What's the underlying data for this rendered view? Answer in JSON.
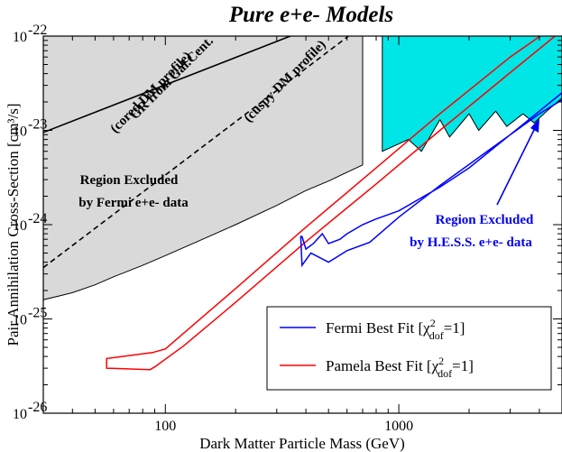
{
  "chart_data": {
    "type": "line",
    "title": "Pure e+e- Models",
    "xlabel": "Dark Matter Particle Mass (GeV)",
    "ylabel": "Pair Annihilation Cross-Section [cm³/s]",
    "xscale": "log",
    "yscale": "log",
    "xlim": [
      30,
      5000
    ],
    "ylim": [
      1e-26,
      1e-22
    ],
    "x_ticks": [
      {
        "value": 100,
        "label": "100"
      },
      {
        "value": 1000,
        "label": "1000"
      }
    ],
    "y_ticks": [
      {
        "value": 1e-26,
        "base": "10",
        "exp": "-26"
      },
      {
        "value": 1e-25,
        "base": "10",
        "exp": "-25"
      },
      {
        "value": 1e-24,
        "base": "10",
        "exp": "-24"
      },
      {
        "value": 1e-23,
        "base": "10",
        "exp": "-23"
      },
      {
        "value": 1e-22,
        "base": "10",
        "exp": "-22"
      }
    ],
    "grid": false,
    "legend_position": "bottom-right",
    "colors": {
      "fermi_region": "#d9d9d9",
      "hess_region": "#00e5e5",
      "fermi_fit": "#0000ff",
      "pamela_fit": "#ff0000",
      "gr_lines": "#000000",
      "hess_annotation": "#0000ee"
    },
    "regions": [
      {
        "name": "Fermi e+e- excluded region",
        "boundary_x": [
          30,
          35,
          40,
          50,
          60,
          80,
          100,
          150,
          200,
          300,
          400,
          500,
          600,
          700
        ],
        "boundary_y": [
          1.6e-25,
          1.75e-25,
          1.9e-25,
          2.3e-25,
          2.8e-25,
          3.7e-25,
          4.7e-25,
          7.3e-25,
          1e-24,
          1.6e-24,
          2.3e-24,
          2.9e-24,
          3.6e-24,
          4.3e-24
        ]
      },
      {
        "name": "H.E.S.S. e+e- excluded region",
        "boundary_x": [
          850,
          1100,
          1250,
          1500,
          1650,
          2000,
          2200,
          2600,
          2900,
          3400,
          3800,
          4300,
          5000
        ],
        "boundary_y": [
          6e-24,
          8e-24,
          6e-24,
          1.3e-23,
          8.5e-24,
          1.5e-23,
          1e-23,
          1.6e-23,
          1.1e-23,
          1.5e-23,
          1.2e-23,
          1.6e-23,
          2.2e-23
        ]
      }
    ],
    "series": [
      {
        "name": "Fermi Best Fit",
        "style": "closed contour",
        "x": [
          380,
          385,
          420,
          500,
          600,
          750,
          1000,
          1500,
          2500,
          4000,
          5000,
          5000,
          4000,
          3000,
          2000,
          1500,
          1000,
          800,
          700,
          600,
          560,
          500,
          470,
          430,
          400,
          385
        ],
        "y": [
          7.5e-25,
          3.7e-25,
          5e-25,
          4e-25,
          5.3e-25,
          6.5e-25,
          1.2e-24,
          2.6e-24,
          6.5e-24,
          1.5e-23,
          2.1e-23,
          2.5e-23,
          1.6e-23,
          9e-24,
          4e-24,
          2.5e-24,
          1.4e-24,
          1.15e-24,
          1e-24,
          8e-25,
          7e-25,
          6.3e-25,
          8e-25,
          6.3e-25,
          5.5e-25,
          7.5e-25
        ]
      },
      {
        "name": "Pamela Best Fit",
        "style": "closed contour",
        "x": [
          56,
          56,
          88,
          100,
          200,
          400,
          800,
          1500,
          3000,
          5000,
          5000,
          3000,
          1500,
          800,
          400,
          200,
          120,
          90,
          86,
          56
        ],
        "y": [
          3e-26,
          3.8e-26,
          4.4e-26,
          4.8e-26,
          2.1e-25,
          9.4e-25,
          4e-24,
          1.5e-23,
          6e-23,
          1.45e-22,
          1.15e-22,
          4.1e-23,
          1e-23,
          2.7e-24,
          6.6e-25,
          1.5e-25,
          5.2e-26,
          3.1e-26,
          2.9e-26,
          3e-26
        ]
      },
      {
        "name": "GR from Gal.Cent. (cored DM profile)",
        "style": "solid",
        "x": [
          30,
          450
        ],
        "y": [
          9.5e-24,
          1.3e-22
        ]
      },
      {
        "name": "GR from Gal.Cent. (cuspy DM profile)",
        "style": "dashed",
        "x": [
          30,
          700
        ],
        "y": [
          3.5e-25,
          1.3e-22
        ]
      }
    ],
    "annotations": {
      "gr_line1": "GR from Gal.Cent.",
      "gr_line2": "(cored DM profile)",
      "cuspy": "(cuspy DM profile)",
      "fermi_region_line1": "Region Excluded",
      "fermi_region_line2": "by Fermi e+e- data",
      "hess_region_line1": "Region Excluded",
      "hess_region_line2": "by H.E.S.S. e+e- data"
    },
    "legend": [
      {
        "label": "Fermi Best Fit [χ",
        "sup": "2",
        "sub": "dof",
        "tail": "=1]",
        "color": "#0000ff"
      },
      {
        "label": "Pamela Best Fit [χ",
        "sup": "2",
        "sub": "dof",
        "tail": "=1]",
        "color": "#ff0000"
      }
    ]
  }
}
